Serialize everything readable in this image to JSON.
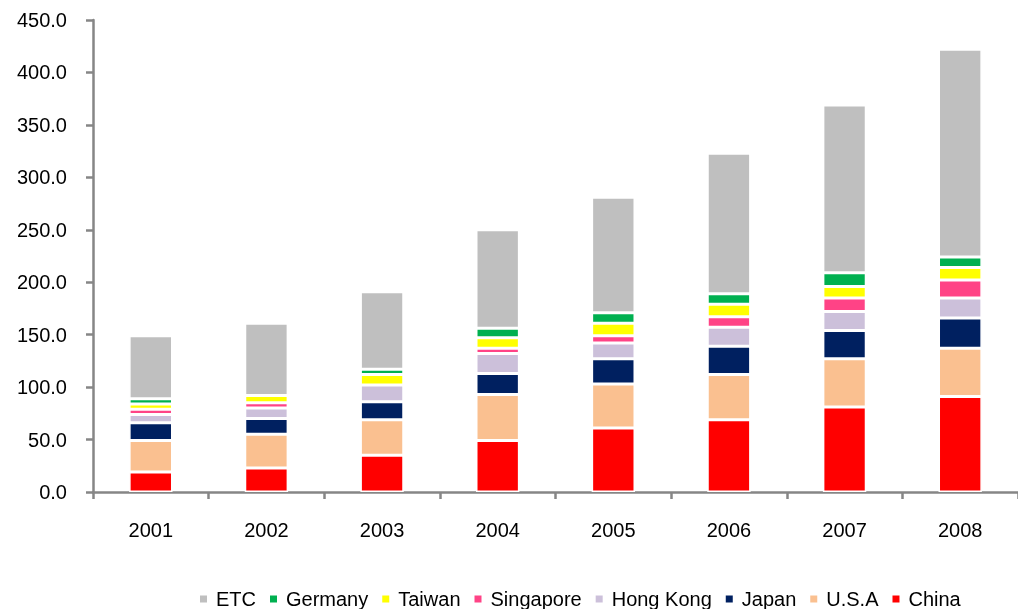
{
  "chart_data": {
    "type": "bar",
    "stacked": true,
    "categories": [
      "2001",
      "2002",
      "2003",
      "2004",
      "2005",
      "2006",
      "2007",
      "2008"
    ],
    "series": [
      {
        "name": "China",
        "color": "#ff0000",
        "values": [
          19,
          23,
          35,
          49,
          61,
          69,
          81,
          91
        ]
      },
      {
        "name": "U.S.A",
        "color": "#fac090",
        "values": [
          30,
          32,
          34,
          44,
          42,
          43,
          46,
          46
        ]
      },
      {
        "name": "Japan",
        "color": "#002060",
        "values": [
          17,
          15,
          17,
          20,
          24,
          27,
          27,
          29
        ]
      },
      {
        "name": "Hong Kong",
        "color": "#ccc0da",
        "values": [
          8,
          10,
          16,
          19,
          15,
          18,
          18,
          19
        ]
      },
      {
        "name": "Singapore",
        "color": "#ff4386",
        "values": [
          5,
          5,
          null,
          5,
          7,
          10,
          13,
          17
        ]
      },
      {
        "name": "Taiwan",
        "color": "#ffff00",
        "values": [
          5,
          7,
          10,
          10,
          12,
          12,
          11,
          12
        ]
      },
      {
        "name": "Germany",
        "color": "#00b050",
        "values": [
          5,
          null,
          5,
          9,
          10,
          10,
          13,
          10
        ]
      },
      {
        "name": "ETC",
        "color": "#bfbfbf",
        "values": [
          60,
          69,
          74,
          94,
          110,
          134,
          160,
          198
        ]
      }
    ],
    "ylim": [
      0,
      450
    ],
    "yticks": [
      {
        "value": 0,
        "label": "0.0"
      },
      {
        "value": 50,
        "label": "50.0"
      },
      {
        "value": 100,
        "label": "100.0"
      },
      {
        "value": 150,
        "label": "150.0"
      },
      {
        "value": 200,
        "label": "200.0"
      },
      {
        "value": 250,
        "label": "250.0"
      },
      {
        "value": 300,
        "label": "300.0"
      },
      {
        "value": 350,
        "label": "350.0"
      },
      {
        "value": 400,
        "label": "400.0"
      },
      {
        "value": 450,
        "label": "450.0"
      }
    ],
    "grid": false,
    "legend": "bottom"
  }
}
